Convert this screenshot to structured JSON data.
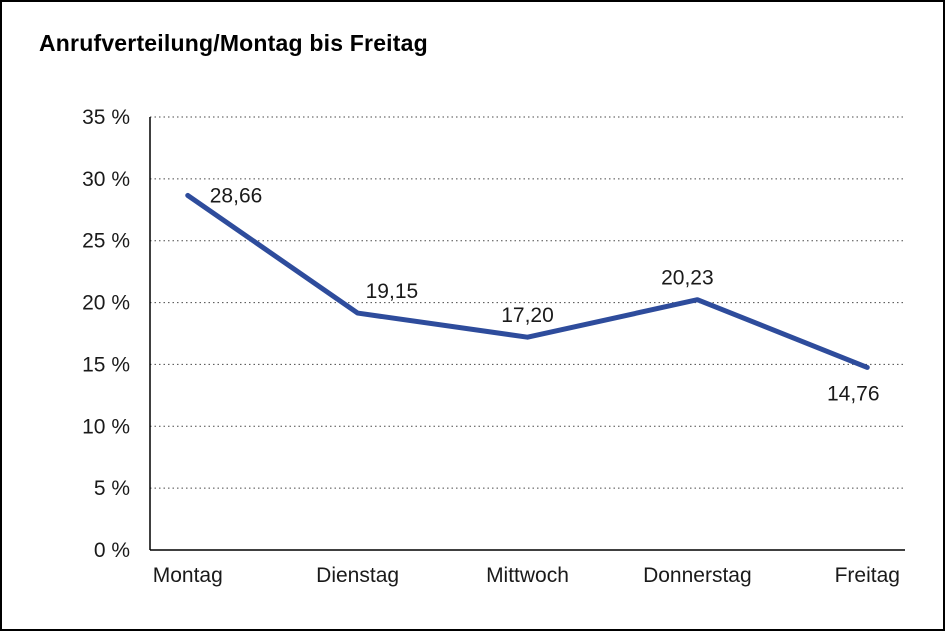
{
  "frame": {
    "background": "#ffffff",
    "border_color": "#000000"
  },
  "chart_data": {
    "type": "line",
    "title": "Anrufverteilung/Montag bis Freitag",
    "categories": [
      "Montag",
      "Dienstag",
      "Mittwoch",
      "Donnerstag",
      "Freitag"
    ],
    "values": [
      28.66,
      19.15,
      17.2,
      20.23,
      14.76
    ],
    "value_labels": [
      "28,66",
      "19,15",
      "17,20",
      "20,23",
      "14,76"
    ],
    "value_label_placement": [
      "right",
      "above-right",
      "above",
      "above-left",
      "below-left"
    ],
    "ylim": [
      0,
      35
    ],
    "ytick_step": 5,
    "ytick_suffix": " %",
    "y_tick_labels": [
      "0 %",
      "5 %",
      "10 %",
      "15 %",
      "20 %",
      "25 %",
      "30 %",
      "35 %"
    ],
    "xlabel": "",
    "ylabel": "",
    "grid": "dotted-horizontal",
    "legend": "none",
    "line_color": "#2E4C9C",
    "axis_color": "#000000",
    "grid_color": "#4a4a4a",
    "label_color": "#1a1a1a"
  }
}
